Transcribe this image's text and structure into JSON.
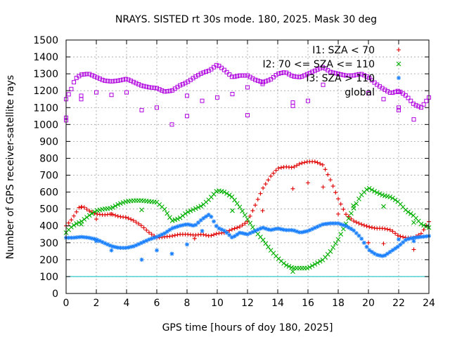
{
  "chart_data": {
    "type": "scatter",
    "title": "NRAYS. SISTED rt 30s mode. 180, 2025. Mask 30 deg",
    "xlabel": "GPS time [hours of doy 180, 2025]",
    "ylabel": "Number of GPS receiver-satellite rays",
    "xlim": [
      0,
      24
    ],
    "ylim": [
      0,
      1500
    ],
    "xticks": [
      "0",
      "2",
      "4",
      "6",
      "8",
      "10",
      "12",
      "14",
      "16",
      "18",
      "20",
      "22",
      "24"
    ],
    "yticks": [
      "0",
      "100",
      "200",
      "300",
      "400",
      "500",
      "600",
      "700",
      "800",
      "900",
      "1000",
      "1100",
      "1200",
      "1300",
      "1400",
      "1500"
    ],
    "grid": true,
    "legend_position": "top-right",
    "reference_line": {
      "y": 100,
      "color": "#00c0c0"
    },
    "series": [
      {
        "name": "I1: SZA < 70",
        "marker": "+",
        "color": "#e00000",
        "points": [
          [
            0,
            400
          ],
          [
            0.3,
            430
          ],
          [
            0.6,
            470
          ],
          [
            0.9,
            515
          ],
          [
            1.2,
            510
          ],
          [
            1.5,
            490
          ],
          [
            2,
            470
          ],
          [
            2.5,
            465
          ],
          [
            3,
            470
          ],
          [
            3.5,
            455
          ],
          [
            4,
            450
          ],
          [
            4.5,
            430
          ],
          [
            5,
            400
          ],
          [
            5.5,
            360
          ],
          [
            6,
            330
          ],
          [
            6.5,
            335
          ],
          [
            7,
            340
          ],
          [
            7.5,
            350
          ],
          [
            8,
            350
          ],
          [
            8.5,
            345
          ],
          [
            9,
            350
          ],
          [
            9.5,
            340
          ],
          [
            10,
            355
          ],
          [
            10.5,
            360
          ],
          [
            11,
            380
          ],
          [
            11.5,
            395
          ],
          [
            12,
            425
          ],
          [
            12.5,
            520
          ],
          [
            13,
            620
          ],
          [
            13.5,
            690
          ],
          [
            14,
            740
          ],
          [
            14.5,
            750
          ],
          [
            15,
            745
          ],
          [
            15.5,
            770
          ],
          [
            16,
            780
          ],
          [
            16.5,
            780
          ],
          [
            17,
            760
          ],
          [
            17.5,
            670
          ],
          [
            18,
            560
          ],
          [
            18.5,
            470
          ],
          [
            19,
            430
          ],
          [
            19.5,
            410
          ],
          [
            20,
            395
          ],
          [
            20.5,
            385
          ],
          [
            21,
            385
          ],
          [
            21.5,
            375
          ],
          [
            22,
            340
          ],
          [
            22.5,
            330
          ],
          [
            23,
            330
          ],
          [
            23.5,
            355
          ],
          [
            24,
            425
          ]
        ],
        "outliers": [
          [
            1,
            510
          ],
          [
            2,
            440
          ],
          [
            3,
            470
          ],
          [
            8.5,
            325
          ],
          [
            13,
            490
          ],
          [
            15,
            620
          ],
          [
            16,
            655
          ],
          [
            17,
            630
          ],
          [
            18,
            470
          ],
          [
            20,
            300
          ],
          [
            21,
            295
          ],
          [
            23,
            260
          ]
        ]
      },
      {
        "name": "I2: 70 <= SZA <= 110",
        "marker": "x",
        "color": "#00b000",
        "points": [
          [
            0,
            360
          ],
          [
            0.3,
            390
          ],
          [
            0.6,
            410
          ],
          [
            1,
            425
          ],
          [
            1.5,
            460
          ],
          [
            2,
            490
          ],
          [
            2.5,
            500
          ],
          [
            3,
            505
          ],
          [
            3.5,
            530
          ],
          [
            4,
            545
          ],
          [
            4.5,
            550
          ],
          [
            5,
            550
          ],
          [
            5.5,
            545
          ],
          [
            6,
            540
          ],
          [
            6.5,
            500
          ],
          [
            7,
            430
          ],
          [
            7.5,
            445
          ],
          [
            8,
            480
          ],
          [
            8.5,
            500
          ],
          [
            9,
            520
          ],
          [
            9.5,
            560
          ],
          [
            10,
            610
          ],
          [
            10.5,
            600
          ],
          [
            11,
            570
          ],
          [
            11.5,
            510
          ],
          [
            12,
            440
          ],
          [
            12.5,
            370
          ],
          [
            13,
            320
          ],
          [
            13.5,
            260
          ],
          [
            14,
            210
          ],
          [
            14.5,
            170
          ],
          [
            15,
            150
          ],
          [
            15.5,
            150
          ],
          [
            16,
            150
          ],
          [
            16.5,
            175
          ],
          [
            17,
            200
          ],
          [
            17.5,
            250
          ],
          [
            18,
            320
          ],
          [
            18.5,
            410
          ],
          [
            19,
            500
          ],
          [
            19.5,
            580
          ],
          [
            20,
            625
          ],
          [
            20.5,
            600
          ],
          [
            21,
            580
          ],
          [
            21.5,
            570
          ],
          [
            22,
            540
          ],
          [
            22.5,
            490
          ],
          [
            23,
            460
          ],
          [
            23.5,
            410
          ],
          [
            24,
            390
          ]
        ],
        "outliers": [
          [
            1,
            410
          ],
          [
            5,
            495
          ],
          [
            11,
            490
          ],
          [
            15,
            130
          ],
          [
            19,
            520
          ],
          [
            21,
            515
          ],
          [
            23,
            420
          ]
        ]
      },
      {
        "name": "I3: SZA > 110",
        "marker": "*",
        "color": "#1a80ff",
        "points": [
          [
            0,
            330
          ],
          [
            0.5,
            330
          ],
          [
            1,
            335
          ],
          [
            1.5,
            330
          ],
          [
            2,
            320
          ],
          [
            2.5,
            300
          ],
          [
            3,
            280
          ],
          [
            3.5,
            270
          ],
          [
            4,
            270
          ],
          [
            4.5,
            280
          ],
          [
            5,
            300
          ],
          [
            5.5,
            320
          ],
          [
            6,
            335
          ],
          [
            6.5,
            355
          ],
          [
            7,
            385
          ],
          [
            7.5,
            400
          ],
          [
            8,
            410
          ],
          [
            8.5,
            400
          ],
          [
            9,
            440
          ],
          [
            9.5,
            470
          ],
          [
            10,
            390
          ],
          [
            10.5,
            370
          ],
          [
            11,
            330
          ],
          [
            11.5,
            360
          ],
          [
            12,
            350
          ],
          [
            12.5,
            370
          ],
          [
            13,
            390
          ],
          [
            13.5,
            375
          ],
          [
            14,
            385
          ],
          [
            14.5,
            375
          ],
          [
            15,
            375
          ],
          [
            15.5,
            360
          ],
          [
            16,
            370
          ],
          [
            16.5,
            390
          ],
          [
            17,
            410
          ],
          [
            17.5,
            415
          ],
          [
            18,
            415
          ],
          [
            18.5,
            400
          ],
          [
            19,
            375
          ],
          [
            19.5,
            330
          ],
          [
            20,
            260
          ],
          [
            20.5,
            230
          ],
          [
            21,
            220
          ],
          [
            21.5,
            250
          ],
          [
            22,
            280
          ],
          [
            22.5,
            320
          ],
          [
            23,
            330
          ],
          [
            23.5,
            335
          ],
          [
            24,
            340
          ]
        ],
        "outliers": [
          [
            2,
            310
          ],
          [
            3,
            255
          ],
          [
            5,
            200
          ],
          [
            6,
            255
          ],
          [
            7,
            235
          ],
          [
            8,
            290
          ],
          [
            9,
            370
          ],
          [
            22,
            320
          ],
          [
            23,
            310
          ]
        ]
      },
      {
        "name": "global",
        "marker": "square",
        "color": "#b000e0",
        "points": [
          [
            0,
            1150
          ],
          [
            0.3,
            1200
          ],
          [
            0.6,
            1270
          ],
          [
            1,
            1295
          ],
          [
            1.5,
            1300
          ],
          [
            2,
            1280
          ],
          [
            2.5,
            1260
          ],
          [
            3,
            1255
          ],
          [
            3.5,
            1260
          ],
          [
            4,
            1270
          ],
          [
            4.5,
            1250
          ],
          [
            5,
            1230
          ],
          [
            5.5,
            1220
          ],
          [
            6,
            1215
          ],
          [
            6.5,
            1195
          ],
          [
            7,
            1200
          ],
          [
            7.5,
            1230
          ],
          [
            8,
            1250
          ],
          [
            8.5,
            1280
          ],
          [
            9,
            1305
          ],
          [
            9.5,
            1320
          ],
          [
            10,
            1355
          ],
          [
            10.5,
            1320
          ],
          [
            11,
            1280
          ],
          [
            11.5,
            1290
          ],
          [
            12,
            1290
          ],
          [
            12.5,
            1265
          ],
          [
            13,
            1250
          ],
          [
            13.5,
            1265
          ],
          [
            14,
            1300
          ],
          [
            14.5,
            1310
          ],
          [
            15,
            1285
          ],
          [
            15.5,
            1280
          ],
          [
            16,
            1300
          ],
          [
            16.5,
            1320
          ],
          [
            17,
            1340
          ],
          [
            17.5,
            1310
          ],
          [
            18,
            1300
          ],
          [
            18.5,
            1290
          ],
          [
            19,
            1290
          ],
          [
            19.5,
            1300
          ],
          [
            20,
            1280
          ],
          [
            20.5,
            1240
          ],
          [
            21,
            1210
          ],
          [
            21.5,
            1185
          ],
          [
            22,
            1200
          ],
          [
            22.5,
            1170
          ],
          [
            23,
            1120
          ],
          [
            23.5,
            1100
          ],
          [
            24,
            1160
          ]
        ],
        "outliers": [
          [
            0,
            1040
          ],
          [
            0,
            1025
          ],
          [
            1,
            1150
          ],
          [
            1,
            1170
          ],
          [
            2,
            1190
          ],
          [
            3,
            1175
          ],
          [
            4,
            1190
          ],
          [
            5,
            1085
          ],
          [
            6,
            1100
          ],
          [
            7,
            1000
          ],
          [
            8,
            1050
          ],
          [
            8,
            1170
          ],
          [
            9,
            1140
          ],
          [
            10,
            1160
          ],
          [
            11,
            1180
          ],
          [
            12,
            1055
          ],
          [
            12,
            1220
          ],
          [
            13,
            1240
          ],
          [
            15,
            1110
          ],
          [
            15,
            1130
          ],
          [
            16,
            1140
          ],
          [
            17,
            1235
          ],
          [
            20,
            1185
          ],
          [
            21,
            1150
          ],
          [
            22,
            1085
          ],
          [
            22,
            1100
          ],
          [
            23,
            1030
          ]
        ]
      }
    ]
  }
}
